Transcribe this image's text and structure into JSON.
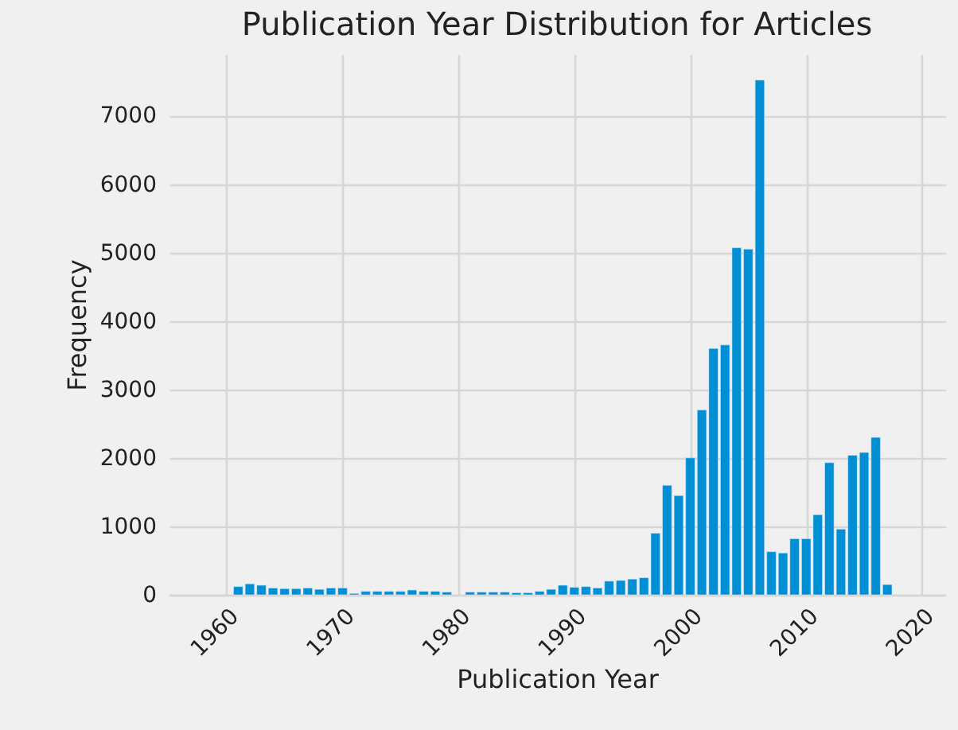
{
  "chart_data": {
    "type": "bar",
    "title": "Publication Year Distribution for Articles",
    "xlabel": "Publication Year",
    "ylabel": "Frequency",
    "color": "#008fd5",
    "x": [
      1961,
      1962,
      1963,
      1964,
      1965,
      1966,
      1967,
      1968,
      1969,
      1970,
      1971,
      1972,
      1973,
      1974,
      1975,
      1976,
      1977,
      1978,
      1979,
      1980,
      1981,
      1982,
      1983,
      1984,
      1985,
      1986,
      1987,
      1988,
      1989,
      1990,
      1991,
      1992,
      1993,
      1994,
      1995,
      1996,
      1997,
      1998,
      1999,
      2000,
      2001,
      2002,
      2003,
      2004,
      2005,
      2006,
      2007,
      2008,
      2009,
      2010,
      2011,
      2012,
      2013,
      2014,
      2015,
      2016,
      2017
    ],
    "values": [
      120,
      160,
      140,
      100,
      90,
      90,
      100,
      80,
      100,
      100,
      20,
      50,
      50,
      50,
      50,
      70,
      50,
      50,
      40,
      null,
      40,
      40,
      40,
      40,
      30,
      30,
      50,
      80,
      140,
      110,
      120,
      100,
      200,
      210,
      230,
      250,
      900,
      1600,
      1450,
      2000,
      2700,
      3600,
      3650,
      5070,
      5050,
      7520,
      630,
      610,
      820,
      820,
      1170,
      1930,
      960,
      2040,
      2080,
      2300,
      150
    ],
    "xlim": [
      1955,
      2022
    ],
    "xticks": [
      1960,
      1970,
      1980,
      1990,
      2000,
      2010,
      2020
    ],
    "ylim": [
      0,
      7900
    ],
    "yticks": [
      0,
      1000,
      2000,
      3000,
      4000,
      5000,
      6000,
      7000
    ],
    "grid": true
  }
}
